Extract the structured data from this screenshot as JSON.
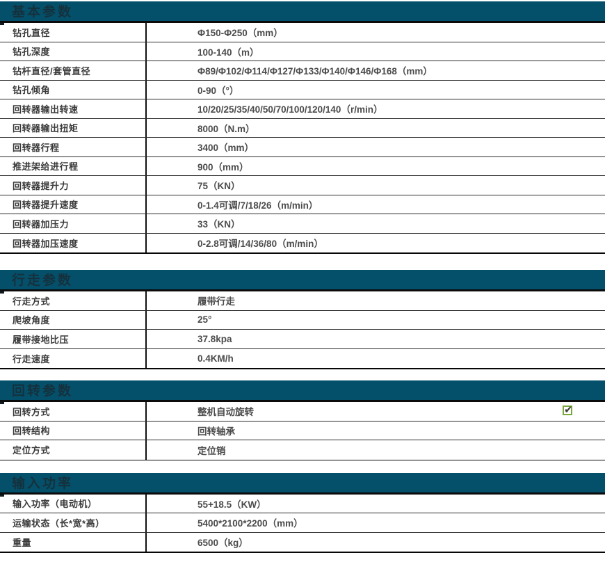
{
  "page": {
    "background": "#ffffff"
  },
  "theme": {
    "header_bg": "#04506A",
    "header_text": "#15313D",
    "label_text": "#3A3A3A",
    "value_text": "#4C4C4C",
    "row_line": "#2B2B2B",
    "divider_line": "#0F0F0F",
    "check_green": "#7AA83D"
  },
  "icons": {
    "check_glyph": "✔"
  },
  "sections": [
    {
      "title": "基本参数",
      "rows": [
        {
          "label": "钻孔直径",
          "value": "Φ150-Φ250（mm）"
        },
        {
          "label": "钻孔深度",
          "value": "100-140（m）"
        },
        {
          "label": "钻杆直径/套管直径",
          "value": "Φ89/Φ102/Φ114/Φ127/Φ133/Φ140/Φ146/Φ168（mm）"
        },
        {
          "label": "钻孔倾角",
          "value": "0-90（°）"
        },
        {
          "label": "回转器输出转速",
          "value": "10/20/25/35/40/50/70/100/120/140（r/min）"
        },
        {
          "label": "回转器输出扭矩",
          "value": "8000（N.m）"
        },
        {
          "label": "回转器行程",
          "value": "3400（mm）"
        },
        {
          "label": "推进架给进行程",
          "value": "900（mm）"
        },
        {
          "label": "回转器提升力",
          "value": "75（KN）"
        },
        {
          "label": "回转器提升速度",
          "value": "0-1.4可调/7/18/26（m/min）"
        },
        {
          "label": "回转器加压力",
          "value": "33（KN）"
        },
        {
          "label": "回转器加压速度",
          "value": "0-2.8可调/14/36/80（m/min）"
        }
      ]
    },
    {
      "title": "行走参数",
      "rows": [
        {
          "label": "行走方式",
          "value": "履带行走"
        },
        {
          "label": "爬坡角度",
          "value": "25°"
        },
        {
          "label": "履带接地比压",
          "value": "37.8kpa"
        },
        {
          "label": "行走速度",
          "value": "0.4KM/h"
        }
      ]
    },
    {
      "title": "回转参数",
      "rows": [
        {
          "label": "回转方式",
          "value": "整机自动旋转",
          "checked": true
        },
        {
          "label": "回转结构",
          "value": "回转轴承"
        },
        {
          "label": "定位方式",
          "value": "定位销"
        }
      ]
    },
    {
      "title": "输入功率",
      "rows": [
        {
          "label": "输入功率（电动机）",
          "value": "55+18.5（KW）"
        },
        {
          "label": "运输状态（长*宽*高）",
          "value": "5400*2100*2200（mm）"
        },
        {
          "label": "重量",
          "value": "6500（kg）"
        }
      ]
    }
  ]
}
